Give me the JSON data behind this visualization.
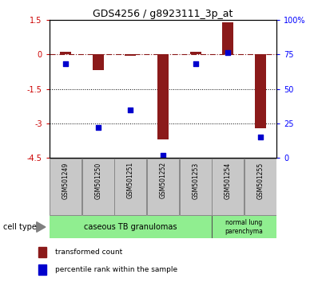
{
  "title": "GDS4256 / g8923111_3p_at",
  "samples": [
    "GSM501249",
    "GSM501250",
    "GSM501251",
    "GSM501252",
    "GSM501253",
    "GSM501254",
    "GSM501255"
  ],
  "transformed_count": [
    0.1,
    -0.7,
    -0.05,
    -3.7,
    0.1,
    1.4,
    -3.2
  ],
  "percentile_rank": [
    68,
    22,
    35,
    2,
    68,
    76,
    15
  ],
  "ylim_left": [
    -4.5,
    1.5
  ],
  "ylim_right": [
    0,
    100
  ],
  "yticks_left": [
    1.5,
    0,
    -1.5,
    -3,
    -4.5
  ],
  "ytick_labels_left": [
    "1.5",
    "0",
    "-1.5",
    "-3",
    "-4.5"
  ],
  "yticks_right": [
    100,
    75,
    50,
    25,
    0
  ],
  "ytick_labels_right": [
    "100%",
    "75",
    "50",
    "25",
    "0"
  ],
  "hline_y": 0,
  "dotted_lines": [
    -1.5,
    -3
  ],
  "bar_color": "#8B1A1A",
  "point_color": "#0000CD",
  "bar_width": 0.35,
  "legend_bar_label": "transformed count",
  "legend_point_label": "percentile rank within the sample",
  "cell_type_label": "cell type",
  "grp1_label": "caseous TB granulomas",
  "grp2_label": "normal lung\nparenchyma",
  "grp1_count": 5,
  "grp2_count": 2,
  "group_color": "#90EE90",
  "sample_box_color": "#C8C8C8"
}
